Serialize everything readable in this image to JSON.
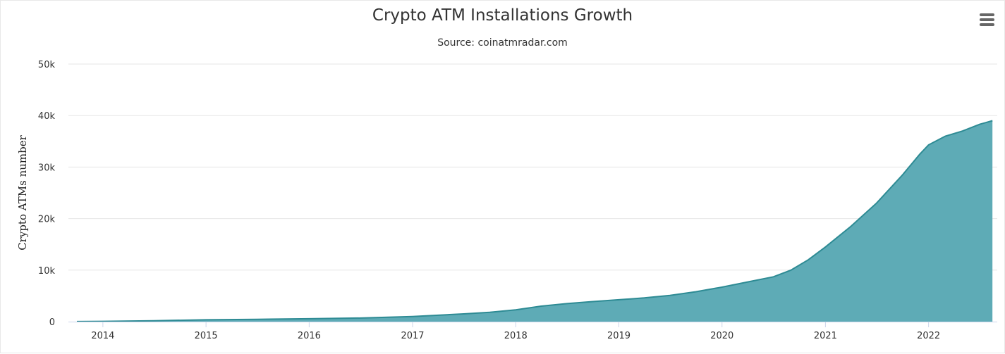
{
  "chart_data": {
    "type": "area",
    "title": "Crypto ATM Installations Growth",
    "subtitle": "Source: coinatmradar.com",
    "xlabel": "",
    "ylabel": "Crypto ATMs number",
    "ylim": [
      0,
      50000
    ],
    "xlim": [
      "2013-09-01",
      "2022-09-01"
    ],
    "yticks": [
      {
        "value": 0,
        "label": "0"
      },
      {
        "value": 10000,
        "label": "10k"
      },
      {
        "value": 20000,
        "label": "20k"
      },
      {
        "value": 30000,
        "label": "30k"
      },
      {
        "value": 40000,
        "label": "40k"
      },
      {
        "value": 50000,
        "label": "50k"
      }
    ],
    "xticks": [
      {
        "date": "2014-01-01",
        "label": "2014"
      },
      {
        "date": "2015-01-01",
        "label": "2015"
      },
      {
        "date": "2016-01-01",
        "label": "2016"
      },
      {
        "date": "2017-01-01",
        "label": "2017"
      },
      {
        "date": "2018-01-01",
        "label": "2018"
      },
      {
        "date": "2019-01-01",
        "label": "2019"
      },
      {
        "date": "2020-01-01",
        "label": "2020"
      },
      {
        "date": "2021-01-01",
        "label": "2021"
      },
      {
        "date": "2022-01-01",
        "label": "2022"
      }
    ],
    "grid": true,
    "legend": "none",
    "colors": {
      "fill": "#5eabb6",
      "line": "#2e8b94",
      "grid": "#e6e6e6",
      "axis": "#ccd6eb"
    },
    "series": [
      {
        "points": [
          {
            "x": "2013-10-01",
            "y": 20
          },
          {
            "x": "2014-01-01",
            "y": 50
          },
          {
            "x": "2014-07-01",
            "y": 180
          },
          {
            "x": "2015-01-01",
            "y": 350
          },
          {
            "x": "2015-07-01",
            "y": 450
          },
          {
            "x": "2016-01-01",
            "y": 560
          },
          {
            "x": "2016-07-01",
            "y": 700
          },
          {
            "x": "2017-01-01",
            "y": 1000
          },
          {
            "x": "2017-07-01",
            "y": 1500
          },
          {
            "x": "2017-10-01",
            "y": 1800
          },
          {
            "x": "2018-01-01",
            "y": 2300
          },
          {
            "x": "2018-04-01",
            "y": 3000
          },
          {
            "x": "2018-07-01",
            "y": 3500
          },
          {
            "x": "2018-10-01",
            "y": 3900
          },
          {
            "x": "2019-01-01",
            "y": 4250
          },
          {
            "x": "2019-04-01",
            "y": 4600
          },
          {
            "x": "2019-07-01",
            "y": 5100
          },
          {
            "x": "2019-10-01",
            "y": 5800
          },
          {
            "x": "2020-01-01",
            "y": 6700
          },
          {
            "x": "2020-04-01",
            "y": 7700
          },
          {
            "x": "2020-07-01",
            "y": 8700
          },
          {
            "x": "2020-09-01",
            "y": 10000
          },
          {
            "x": "2020-11-01",
            "y": 12000
          },
          {
            "x": "2021-01-01",
            "y": 14500
          },
          {
            "x": "2021-04-01",
            "y": 18500
          },
          {
            "x": "2021-07-01",
            "y": 23000
          },
          {
            "x": "2021-10-01",
            "y": 28500
          },
          {
            "x": "2021-12-01",
            "y": 32500
          },
          {
            "x": "2022-01-01",
            "y": 34300
          },
          {
            "x": "2022-03-01",
            "y": 36000
          },
          {
            "x": "2022-05-01",
            "y": 37000
          },
          {
            "x": "2022-07-01",
            "y": 38300
          },
          {
            "x": "2022-08-15",
            "y": 39000
          }
        ]
      }
    ]
  },
  "ui": {
    "menu_icon": "hamburger-menu-icon"
  }
}
